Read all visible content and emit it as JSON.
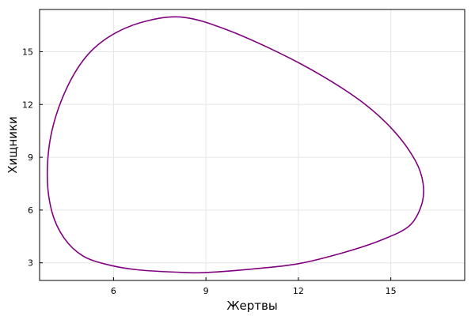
{
  "chart_data": {
    "type": "line",
    "title": "",
    "xlabel": "Жертвы",
    "ylabel": "Хищники",
    "xlim": [
      3.6,
      17.4
    ],
    "ylim": [
      2.0,
      17.4
    ],
    "xticks": [
      6,
      9,
      12,
      15
    ],
    "yticks": [
      3,
      6,
      9,
      12,
      15
    ],
    "grid": true,
    "legend": "none",
    "series": [
      {
        "color": "#800080",
        "x": [
          9.0,
          10.5,
          12.0,
          13.5,
          14.7,
          15.6,
          16.0,
          16.05,
          15.8,
          15.1,
          14.1,
          12.8,
          11.3,
          9.6,
          8.3,
          7.2,
          6.1,
          5.2,
          4.5,
          4.0,
          3.85,
          4.0,
          4.4,
          5.0,
          5.8,
          6.8,
          8.3,
          9.0
        ],
        "y": [
          2.45,
          2.65,
          2.95,
          3.6,
          4.3,
          5.1,
          6.3,
          7.5,
          8.8,
          10.5,
          12.1,
          13.6,
          15.0,
          16.3,
          16.95,
          16.8,
          16.1,
          14.9,
          13.0,
          10.5,
          8.0,
          5.9,
          4.4,
          3.4,
          2.9,
          2.6,
          2.45,
          2.45
        ]
      }
    ]
  }
}
